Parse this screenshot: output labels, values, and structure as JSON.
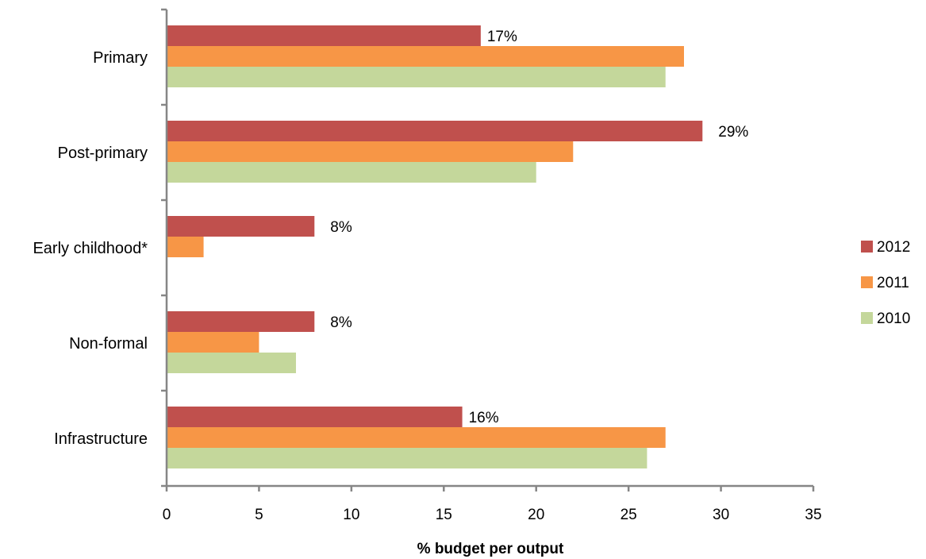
{
  "chart_data": {
    "type": "bar",
    "orientation": "horizontal",
    "categories": [
      "Primary",
      "Post-primary",
      "Early childhood*",
      "Non-formal",
      "Infrastructure"
    ],
    "series": [
      {
        "name": "2012",
        "color": "#c0504d",
        "values": [
          17,
          29,
          8,
          8,
          16
        ]
      },
      {
        "name": "2011",
        "color": "#f79646",
        "values": [
          28,
          22,
          2,
          5,
          27
        ]
      },
      {
        "name": "2010",
        "color": "#c4d79b",
        "values": [
          27,
          20,
          null,
          7,
          26
        ]
      }
    ],
    "data_labels": [
      {
        "category": "Primary",
        "series": "2012",
        "text": "17%"
      },
      {
        "category": "Post-primary",
        "series": "2012",
        "text": "29%"
      },
      {
        "category": "Early childhood*",
        "series": "2012",
        "text": "8%"
      },
      {
        "category": "Non-formal",
        "series": "2012",
        "text": "8%"
      },
      {
        "category": "Infrastructure",
        "series": "2012",
        "text": "16%"
      }
    ],
    "xlabel": "% budget per output",
    "ylabel": "",
    "xlim": [
      0,
      35
    ],
    "xticks": [
      0,
      5,
      10,
      15,
      20,
      25,
      30,
      35
    ],
    "grid": false,
    "legend": {
      "position": "right",
      "entries": [
        "2012",
        "2011",
        "2010"
      ]
    }
  }
}
